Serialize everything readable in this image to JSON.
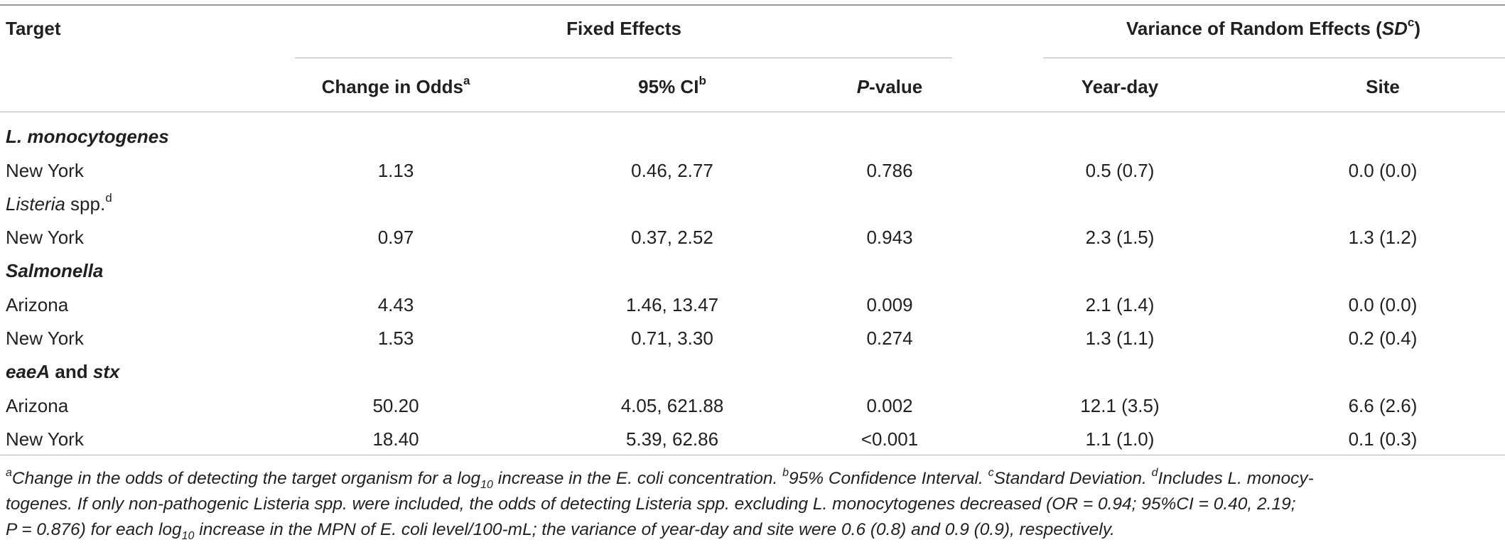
{
  "header": {
    "target": "Target",
    "fixed_effects": "Fixed Effects",
    "random_effects": "Variance of Random Effects (",
    "random_effects_sd": "SD",
    "random_effects_sup": "c",
    "random_effects_close": ")",
    "change_in_odds": "Change in Odds",
    "change_in_odds_sup": "a",
    "ci": "95% CI",
    "ci_sup": "b",
    "pvalue_p": "P",
    "pvalue_rest": "-value",
    "year_day": "Year-day",
    "site": "Site"
  },
  "sections": {
    "lmono": {
      "title": "L. monocytogenes"
    },
    "listeria": {
      "title": "Listeria",
      "title_rest": " spp.",
      "sup": "d"
    },
    "salmonella": {
      "title": "Salmonella"
    },
    "eae": {
      "p1": "eaeA",
      "p2": " and ",
      "p3": "stx"
    }
  },
  "rows": [
    {
      "target": "New York",
      "odds": "1.13",
      "ci": "0.46, 2.77",
      "p": "0.786",
      "yearday": "0.5 (0.7)",
      "site": "0.0 (0.0)"
    },
    {
      "target": "New York",
      "odds": "0.97",
      "ci": "0.37, 2.52",
      "p": "0.943",
      "yearday": "2.3 (1.5)",
      "site": "1.3 (1.2)"
    },
    {
      "target": "Arizona",
      "odds": "4.43",
      "ci": "1.46, 13.47",
      "p": "0.009",
      "yearday": "2.1 (1.4)",
      "site": "0.0 (0.0)"
    },
    {
      "target": "New York",
      "odds": "1.53",
      "ci": "0.71, 3.30",
      "p": "0.274",
      "yearday": "1.3 (1.1)",
      "site": "0.2 (0.4)"
    },
    {
      "target": "Arizona",
      "odds": "50.20",
      "ci": "4.05, 621.88",
      "p": "0.002",
      "yearday": "12.1 (3.5)",
      "site": "6.6 (2.6)"
    },
    {
      "target": "New York",
      "odds": "18.40",
      "ci": "5.39, 62.86",
      "p": "<0.001",
      "yearday": "1.1 (1.0)",
      "site": "0.1 (0.3)"
    }
  ],
  "footnote": {
    "a": "a",
    "a_text1": "Change in the odds of detecting the target organism for a log",
    "a_sub": "10",
    "a_text2": " increase in the E. coli concentration. ",
    "b": "b",
    "b_text": "95% Confidence Interval. ",
    "c": "c",
    "c_text": "Standard Deviation. ",
    "d": "d",
    "d_text1": "Includes L. monocy-",
    "line2": "togenes. If only non-pathogenic Listeria spp. were included, the odds of detecting Listeria spp. excluding L. monocytogenes decreased (OR = 0.94; 95%CI = 0.40, 2.19;",
    "line3a": "P = 0.876) for each log",
    "line3_sub": "10",
    "line3b": " increase in the MPN of E. coli level/100-mL; the variance of year-day and site were 0.6 (0.8) and 0.9 (0.9), respectively."
  }
}
